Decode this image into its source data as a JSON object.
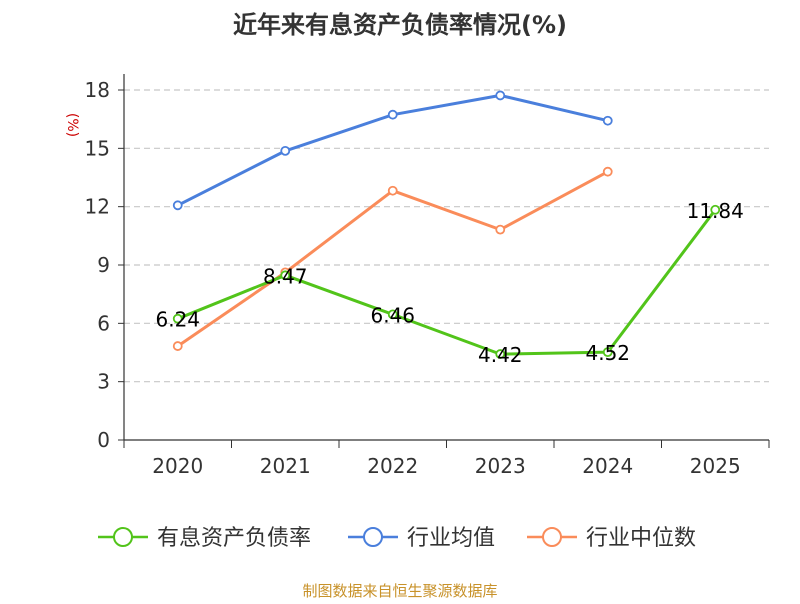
{
  "chart_data": {
    "type": "line",
    "title": "近年来有息资产负债率情况(%)",
    "ylabel": "(%)",
    "categories": [
      "2020",
      "2021",
      "2022",
      "2023",
      "2024",
      "2025"
    ],
    "ylim": [
      0,
      18
    ],
    "yticks": [
      0,
      3,
      6,
      9,
      12,
      15,
      18
    ],
    "grid": "horizontal-dashed",
    "legend_position": "bottom",
    "series": [
      {
        "name": "有息资产负债率",
        "color": "#52c41a",
        "labeled": true,
        "values": [
          6.24,
          8.47,
          6.46,
          4.42,
          4.52,
          11.84
        ],
        "labels": [
          "6.24",
          "8.47",
          "6.46",
          "4.42",
          "4.52",
          "11.84"
        ]
      },
      {
        "name": "行业均值",
        "color": "#4a7fdc",
        "labeled": false,
        "values": [
          12.07,
          14.87,
          16.73,
          17.72,
          16.42,
          null
        ]
      },
      {
        "name": "行业中位数",
        "color": "#fa8c5a",
        "labeled": false,
        "values": [
          4.83,
          8.62,
          12.82,
          10.82,
          13.8,
          null
        ]
      }
    ],
    "source": "制图数据来自恒生聚源数据库"
  }
}
